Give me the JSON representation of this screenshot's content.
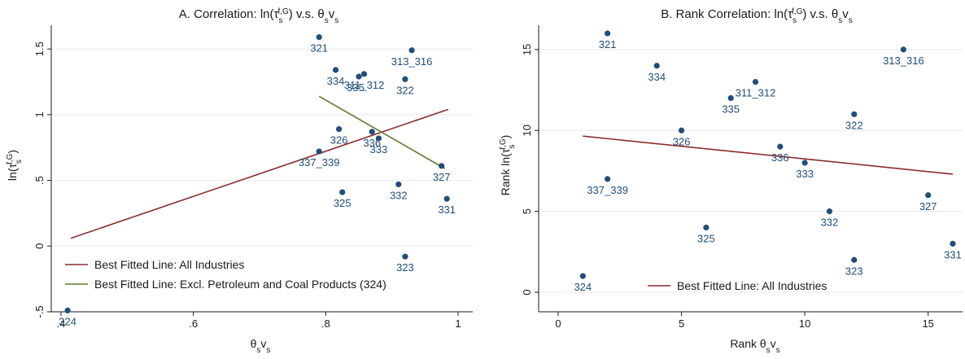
{
  "chart_data": [
    {
      "type": "scatter",
      "title": "A. Correlation: ln(τ_s^{f,G}) v.s. θ_s v_s",
      "title_parts": {
        "prefix": "A. Correlation: ln(τ",
        "sub": "s",
        "sup": "f,G",
        "mid": ") v.s. θ",
        "sub2": "s",
        "v": "v",
        "sub3": "s"
      },
      "xlabel": "θsvs",
      "ylabel": "ln(τs f,G)",
      "xlim": [
        0.4,
        1.0
      ],
      "ylim": [
        -0.5,
        1.6
      ],
      "x_ticks": [
        0.4,
        0.6,
        0.8,
        1.0
      ],
      "x_tick_labels": [
        ".4",
        ".6",
        ".8",
        "1"
      ],
      "y_ticks": [
        -0.5,
        0,
        0.5,
        1,
        1.5
      ],
      "y_tick_labels": [
        "-.5",
        "0",
        ".5",
        "1",
        "1.5"
      ],
      "points": [
        {
          "label": "321",
          "x": 0.79,
          "y": 1.59
        },
        {
          "label": "313_316",
          "x": 0.93,
          "y": 1.49
        },
        {
          "label": "334",
          "x": 0.815,
          "y": 1.34
        },
        {
          "label": "311_312",
          "x": 0.858,
          "y": 1.31
        },
        {
          "label": "335",
          "x": 0.85,
          "y": 1.29
        },
        {
          "label": "322",
          "x": 0.92,
          "y": 1.27
        },
        {
          "label": "326",
          "x": 0.82,
          "y": 0.89
        },
        {
          "label": "336",
          "x": 0.87,
          "y": 0.87
        },
        {
          "label": "333",
          "x": 0.88,
          "y": 0.82
        },
        {
          "label": "337_339",
          "x": 0.79,
          "y": 0.72
        },
        {
          "label": "327",
          "x": 0.975,
          "y": 0.61
        },
        {
          "label": "332",
          "x": 0.91,
          "y": 0.47
        },
        {
          "label": "325",
          "x": 0.825,
          "y": 0.41
        },
        {
          "label": "331",
          "x": 0.983,
          "y": 0.36
        },
        {
          "label": "323",
          "x": 0.92,
          "y": -0.08
        },
        {
          "label": "324",
          "x": 0.41,
          "y": -0.49
        }
      ],
      "lines": [
        {
          "name": "Best Fitted Line: All Industries",
          "color": "#8b2c2c",
          "x": [
            0.415,
            0.985
          ],
          "y": [
            0.06,
            1.04
          ]
        },
        {
          "name": "Best Fitted Line: Excl. Petroleum and Coal Products (324)",
          "color": "#5a7a2a",
          "x": [
            0.79,
            0.98
          ],
          "y": [
            1.14,
            0.59
          ]
        }
      ],
      "legend": "bottom-left"
    },
    {
      "type": "scatter",
      "title": "B. Rank Correlation: ln(τ_s^{f,G}) v.s. θ_s v_s",
      "xlabel": "Rank θsvs",
      "ylabel": "Rank ln(τs f,G)",
      "xlim": [
        0,
        16
      ],
      "ylim": [
        0,
        16
      ],
      "x_ticks": [
        0,
        5,
        10,
        15
      ],
      "x_tick_labels": [
        "0",
        "5",
        "10",
        "15"
      ],
      "y_ticks": [
        0,
        5,
        10,
        15
      ],
      "y_tick_labels": [
        "0",
        "5",
        "10",
        "15"
      ],
      "points": [
        {
          "label": "321",
          "x": 2,
          "y": 16
        },
        {
          "label": "313_316",
          "x": 14,
          "y": 15
        },
        {
          "label": "334",
          "x": 4,
          "y": 14
        },
        {
          "label": "311_312",
          "x": 8,
          "y": 13
        },
        {
          "label": "335",
          "x": 7,
          "y": 12
        },
        {
          "label": "322",
          "x": 12,
          "y": 11
        },
        {
          "label": "326",
          "x": 5,
          "y": 10
        },
        {
          "label": "336",
          "x": 9,
          "y": 9
        },
        {
          "label": "333",
          "x": 10,
          "y": 8
        },
        {
          "label": "337_339",
          "x": 2,
          "y": 7
        },
        {
          "label": "327",
          "x": 15,
          "y": 6
        },
        {
          "label": "332",
          "x": 11,
          "y": 5
        },
        {
          "label": "325",
          "x": 6,
          "y": 4
        },
        {
          "label": "331",
          "x": 16,
          "y": 3
        },
        {
          "label": "323",
          "x": 12,
          "y": 2
        },
        {
          "label": "324",
          "x": 1,
          "y": 1
        }
      ],
      "lines": [
        {
          "name": "Best Fitted Line: All Industries",
          "color": "#8b2c2c",
          "x": [
            1,
            16
          ],
          "y": [
            9.65,
            7.3
          ]
        }
      ],
      "legend": "bottom-center"
    }
  ],
  "colors": {
    "point": "#1f4e79",
    "point_label": "#1f4e79"
  }
}
